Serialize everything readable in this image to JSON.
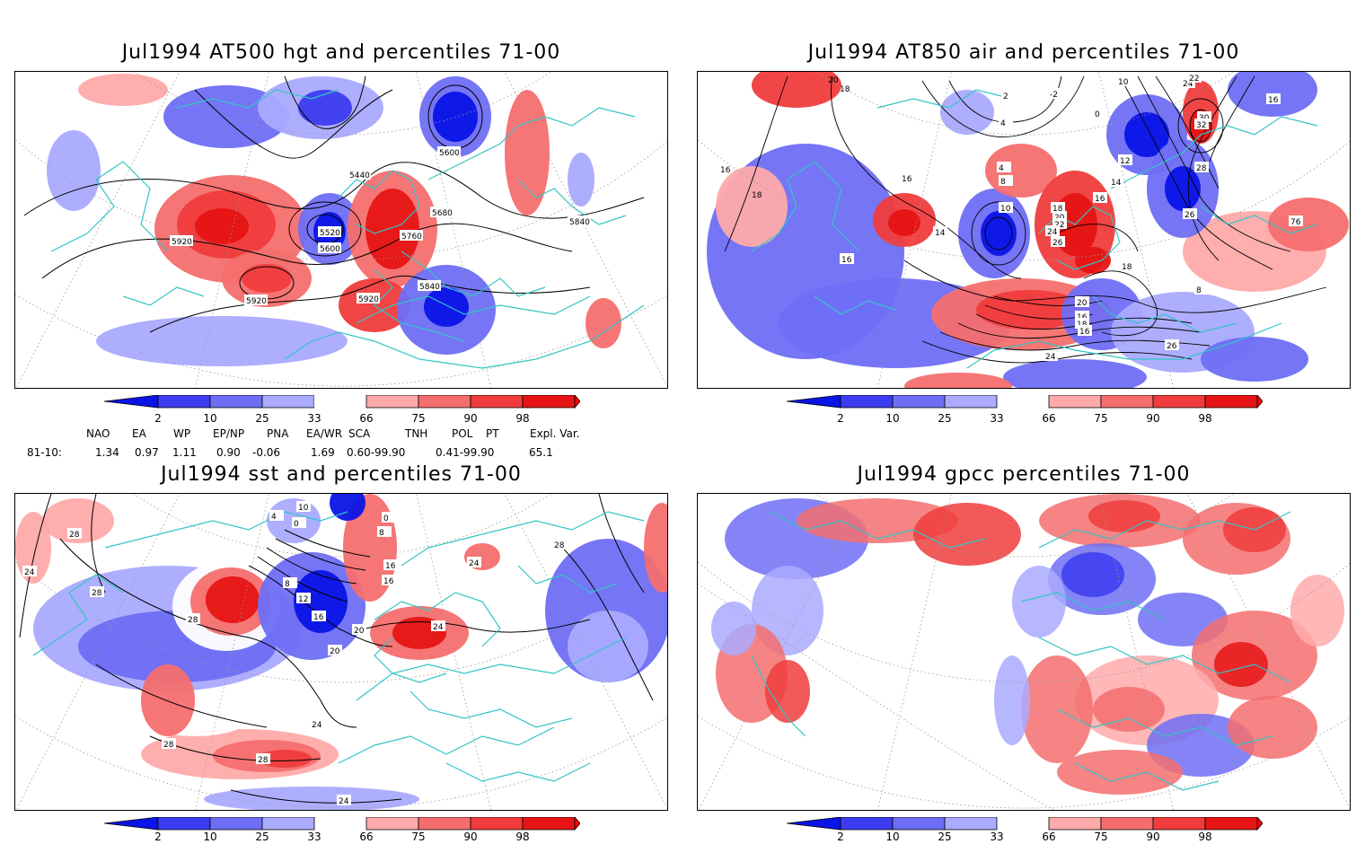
{
  "panels": [
    {
      "id": "hgt",
      "title": "Jul1994 AT500 hgt and percentiles 71-00",
      "contour_labels": [
        "5440",
        "5600",
        "5520",
        "5600",
        "5680",
        "5760",
        "5840",
        "5920",
        "5920",
        "5920",
        "5840"
      ]
    },
    {
      "id": "air",
      "title": "Jul1994 AT850 air and percentiles 71-00",
      "contour_labels": [
        "20",
        "18",
        "16",
        "18",
        "16",
        "14",
        "16",
        "10",
        "8",
        "4",
        "4",
        "2",
        "-2",
        "0",
        "10",
        "12",
        "14",
        "16",
        "18",
        "20",
        "22",
        "24",
        "26",
        "28",
        "30",
        "32",
        "26",
        "24",
        "22",
        "20",
        "18",
        "16",
        "18",
        "16",
        "26",
        "24",
        "76",
        "8",
        "16"
      ]
    },
    {
      "id": "sst",
      "title": "Jul1994 sst and percentiles 71-00",
      "contour_labels": [
        "28",
        "24",
        "28",
        "28",
        "8",
        "12",
        "16",
        "20",
        "20",
        "24",
        "24",
        "16",
        "28",
        "28",
        "24",
        "24",
        "28",
        "16",
        "8",
        "4",
        "0",
        "0",
        "10"
      ]
    },
    {
      "id": "gpcc",
      "title": "Jul1994 gpcc percentiles 71-00",
      "contour_labels": []
    }
  ],
  "colorbar": {
    "labels": [
      "2",
      "10",
      "25",
      "33",
      "66",
      "75",
      "90",
      "98"
    ],
    "colors": [
      "#0a14e6",
      "#3c3cf0",
      "#6e6ef5",
      "#aaaaff",
      "#ffaaaa",
      "#f56e6e",
      "#f03c3c",
      "#e61414",
      "#ff0000"
    ]
  },
  "indices": {
    "header": [
      "NAO",
      "EA",
      "WP",
      "EP/NP",
      "PNA",
      "EA/WR",
      "SCA",
      "TNH",
      "POL",
      "PT",
      "Expl. Var."
    ],
    "row_label": "81-10:",
    "values": [
      "1.34",
      "0.97",
      "1.11",
      "0.90",
      "-0.06",
      "1.69",
      "0.60-99.90",
      "",
      "0.41-99.90",
      "",
      "65.1"
    ]
  },
  "colors": {
    "coast": "#33c5c5",
    "grid": "#9a9a9a",
    "contour": "#000000"
  }
}
